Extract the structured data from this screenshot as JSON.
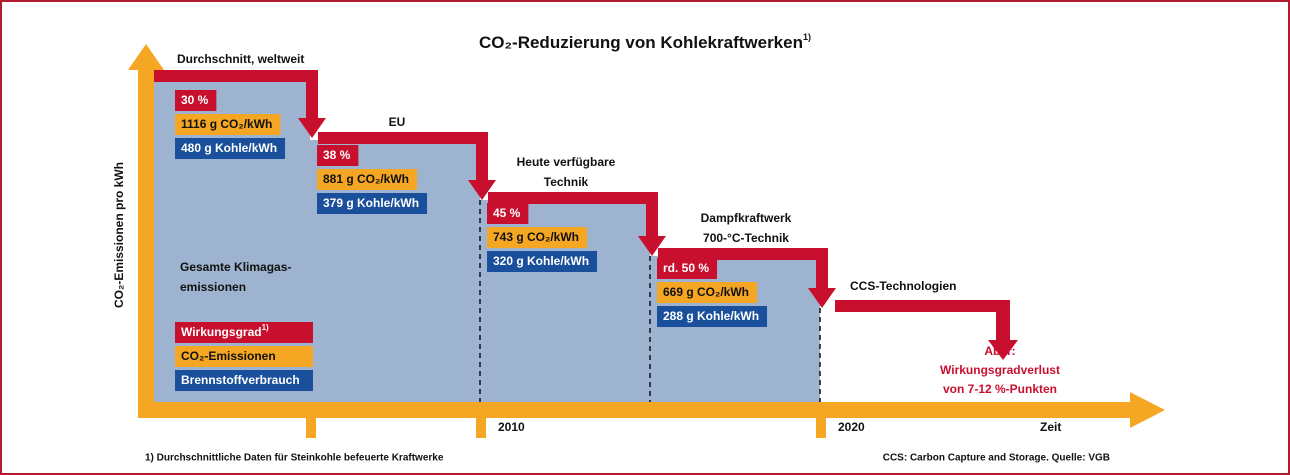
{
  "title": "CO₂-Reduzierung von Kohlekraftwerken",
  "title_note": "1)",
  "y_axis_label": "CO₂-Emissionen pro kWh",
  "stages": [
    {
      "title": [
        "Durchschnitt, weltweit"
      ],
      "efficiency": "30 %",
      "co2": "1116 g CO₂/kWh",
      "coal": "480 g Kohle/kWh"
    },
    {
      "title": [
        "EU"
      ],
      "efficiency": "38 %",
      "co2": "881 g CO₂/kWh",
      "coal": "379 g Kohle/kWh"
    },
    {
      "title": [
        "Heute verfügbare",
        "Technik"
      ],
      "efficiency": "45 %",
      "co2": "743 g CO₂/kWh",
      "coal": "320 g Kohle/kWh"
    },
    {
      "title": [
        "Dampfkraftwerk",
        "700-°C-Technik"
      ],
      "efficiency": "rd. 50 %",
      "co2": "669 g CO₂/kWh",
      "coal": "288 g Kohle/kWh"
    },
    {
      "title": [
        "CCS-Technologien"
      ]
    }
  ],
  "area_label": [
    "Gesamte Klimagas-",
    "emissionen"
  ],
  "legend": {
    "efficiency": "Wirkungsgrad",
    "efficiency_note": "1)",
    "co2": "CO₂-Emissionen",
    "coal": "Brennstoffverbrauch"
  },
  "annotation": [
    "Aber:",
    "Wirkungsgradverlust",
    "von 7-12 %-Punkten"
  ],
  "x_labels": [
    "2010",
    "2020",
    "Zeit"
  ],
  "footnote": "1) Durchschnittliche Daten für Steinkohle befeuerte Kraftwerke",
  "source": "CCS: Carbon Capture and Storage. Quelle: VGB"
}
